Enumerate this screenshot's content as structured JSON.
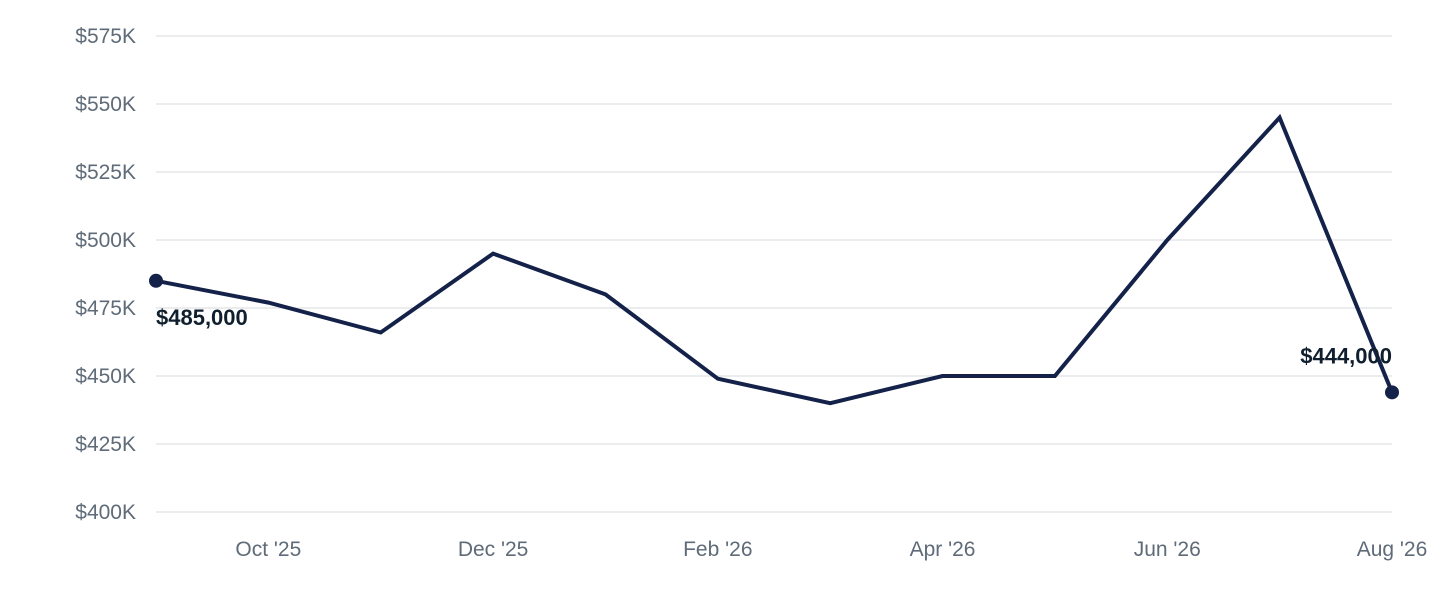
{
  "chart_data": {
    "type": "line",
    "title": "",
    "xlabel": "",
    "ylabel": "",
    "x": [
      "Sep '25",
      "Oct '25",
      "Nov '25",
      "Dec '25",
      "Jan '26",
      "Feb '26",
      "Mar '26",
      "Apr '26",
      "May '26",
      "Jun '26",
      "Jul '26",
      "Aug '26"
    ],
    "x_tick_labels": [
      "Oct '25",
      "Dec '25",
      "Feb '26",
      "Apr '26",
      "Jun '26",
      "Aug '26"
    ],
    "x_tick_indices": [
      1,
      3,
      5,
      7,
      9,
      11
    ],
    "series": [
      {
        "values": [
          485000,
          477000,
          466000,
          495000,
          480000,
          449000,
          440000,
          450000,
          450000,
          500000,
          545000,
          444000
        ],
        "color": "#14224a"
      }
    ],
    "ylim": [
      400000,
      575000
    ],
    "y_ticks": [
      400000,
      425000,
      450000,
      475000,
      500000,
      525000,
      550000,
      575000
    ],
    "y_tick_labels": [
      "$400K",
      "$425K",
      "$450K",
      "$475K",
      "$500K",
      "$525K",
      "$550K",
      "$575K"
    ],
    "start_label": "$485,000",
    "end_label": "$444,000",
    "grid": true,
    "legend": "none",
    "colors": {
      "line": "#14224a",
      "grid": "#e3e5e8",
      "tick_text": "#5f6b78",
      "label_text": "#0f1f2e"
    }
  }
}
